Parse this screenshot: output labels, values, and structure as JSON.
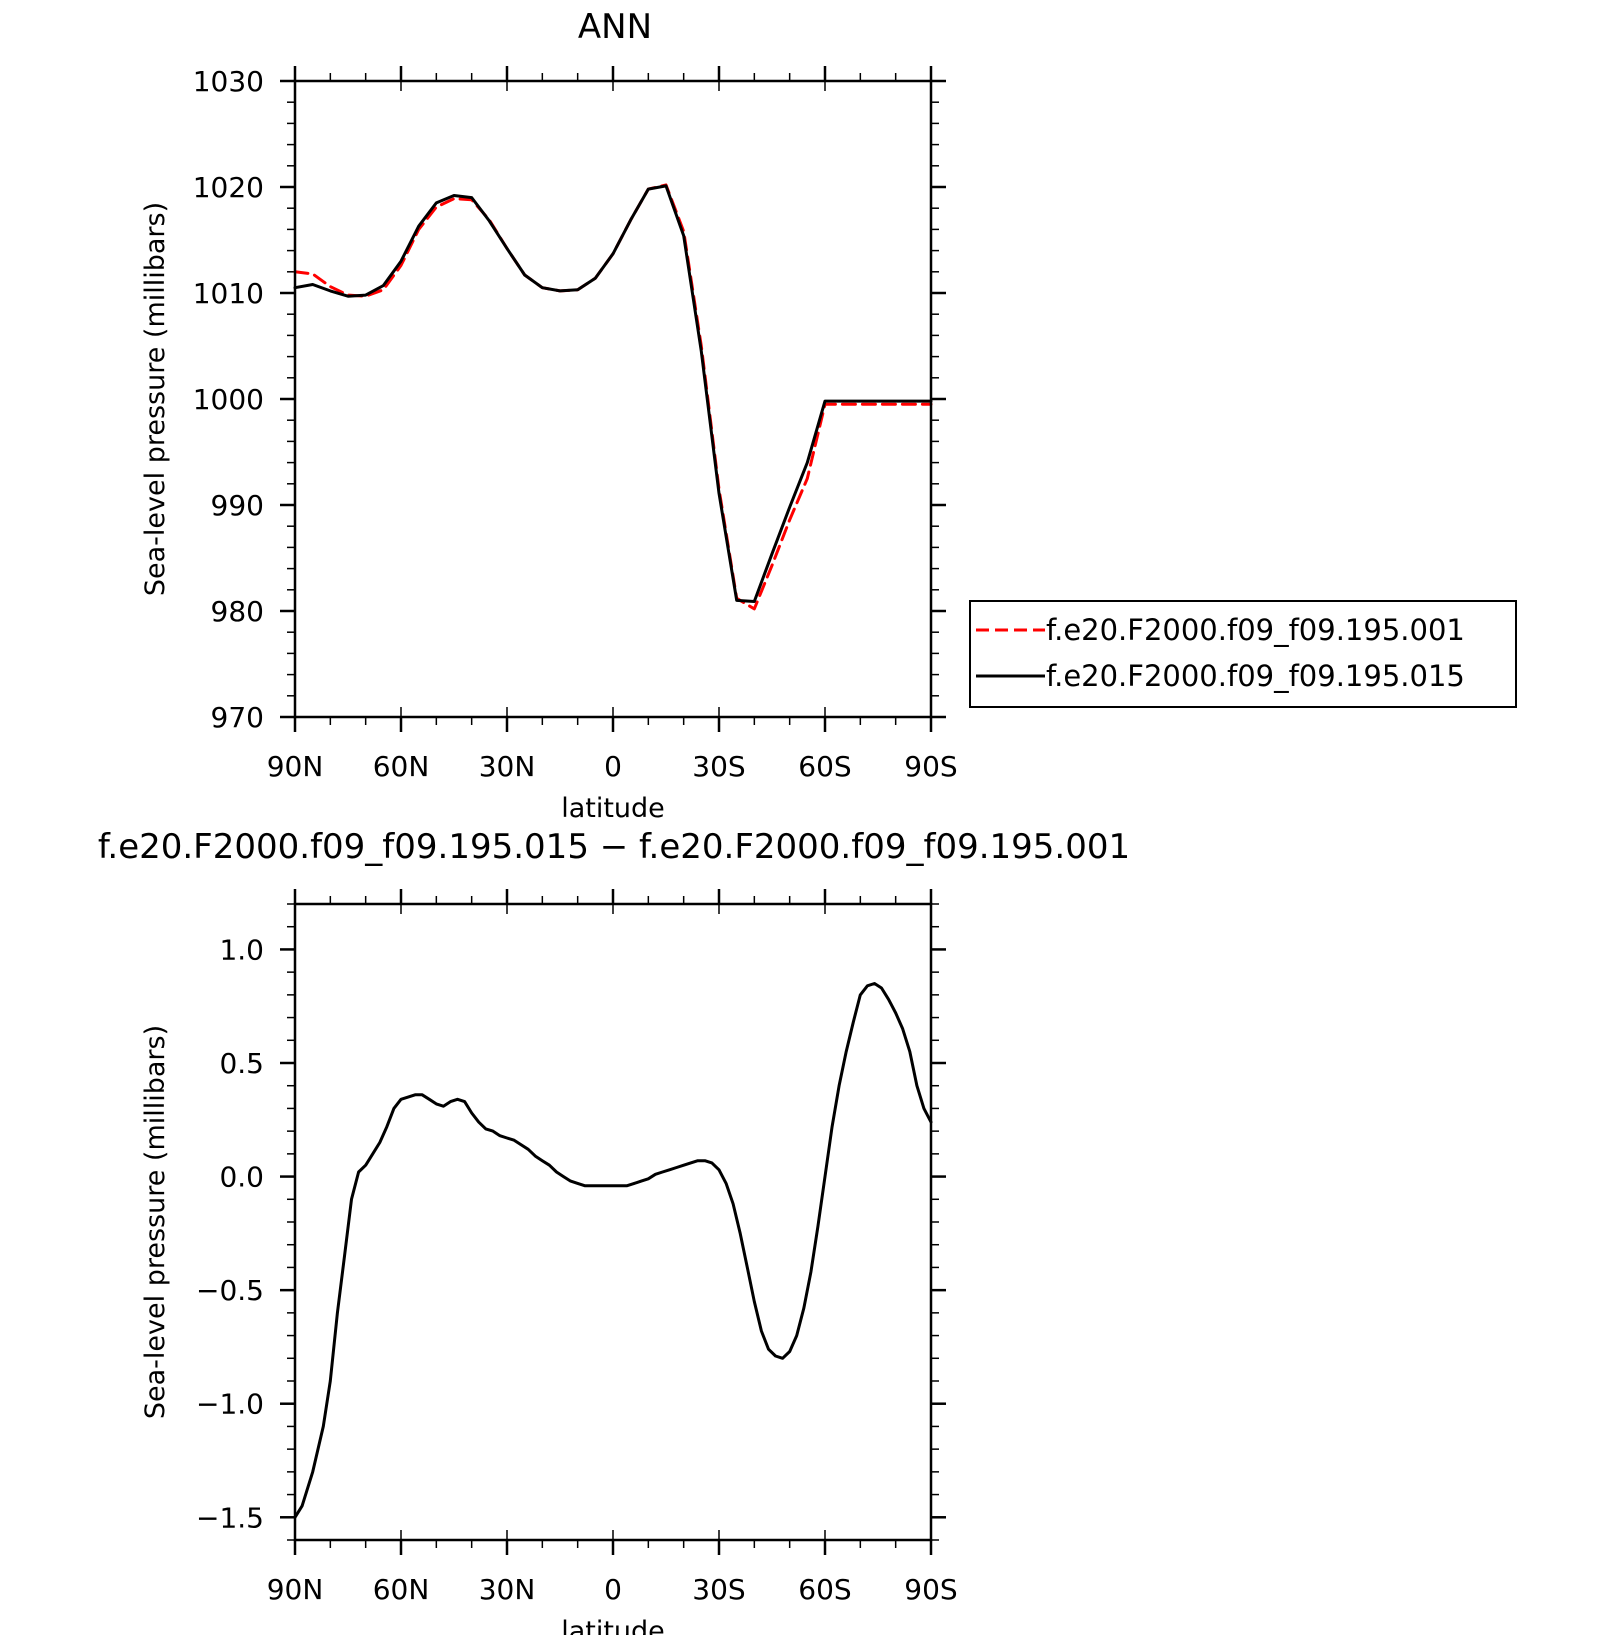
{
  "chart_data": [
    {
      "type": "line",
      "title": "ANN",
      "xlabel": "latitude",
      "ylabel": "Sea-level pressure (millibars)",
      "xlim": [
        90,
        -90
      ],
      "ylim": [
        970,
        1030
      ],
      "x_tick_values": [
        90,
        60,
        30,
        0,
        -30,
        -60,
        -90
      ],
      "x_tick_labels": [
        "90N",
        "60N",
        "30N",
        "0",
        "30S",
        "60S",
        "90S"
      ],
      "y_tick_values": [
        970,
        980,
        990,
        1000,
        1010,
        1020,
        1030
      ],
      "y_tick_labels": [
        "970",
        "980",
        "990",
        "1000",
        "1010",
        "1020",
        "1030"
      ],
      "grid": false,
      "legend_position": "right",
      "series": [
        {
          "name": "f.e20.F2000.f09_f09.195.001",
          "color": "#ff0000",
          "dash": "dashed",
          "x": [
            90,
            85,
            80,
            75,
            70,
            65,
            60,
            55,
            50,
            45,
            40,
            35,
            30,
            25,
            20,
            15,
            10,
            5,
            0,
            -5,
            -10,
            -15,
            -20,
            -25,
            -30,
            -35,
            -40,
            -45,
            -50,
            -55,
            -60,
            -65,
            -70,
            -75,
            -80,
            -85,
            -90
          ],
          "y": [
            1012.0,
            1011.8,
            1010.6,
            1009.8,
            1009.7,
            1010.3,
            1012.6,
            1016.0,
            1018.1,
            1018.9,
            1018.8,
            1016.9,
            1014.2,
            1011.7,
            1010.5,
            1010.2,
            1010.3,
            1011.4,
            1013.7,
            1016.9,
            1019.8,
            1020.2,
            1015.8,
            1005.0,
            991.5,
            981.2,
            980.2,
            984.3,
            988.6,
            992.5,
            999.5,
            999.5,
            999.5,
            999.5,
            999.5,
            999.5,
            999.5
          ]
        },
        {
          "name": "f.e20.F2000.f09_f09.195.015",
          "color": "#000000",
          "dash": "solid",
          "x": [
            90,
            85,
            80,
            75,
            70,
            65,
            60,
            55,
            50,
            45,
            40,
            35,
            30,
            25,
            20,
            15,
            10,
            5,
            0,
            -5,
            -10,
            -15,
            -20,
            -25,
            -30,
            -35,
            -40,
            -45,
            -50,
            -55,
            -60,
            -65,
            -70,
            -75,
            -80,
            -85,
            -90
          ],
          "y": [
            1010.5,
            1010.8,
            1010.2,
            1009.7,
            1009.8,
            1010.7,
            1013.0,
            1016.3,
            1018.5,
            1019.2,
            1019.0,
            1016.8,
            1014.2,
            1011.7,
            1010.5,
            1010.2,
            1010.3,
            1011.4,
            1013.7,
            1016.9,
            1019.8,
            1020.1,
            1015.4,
            1004.5,
            991.1,
            981.0,
            980.9,
            985.4,
            989.8,
            994.0,
            999.8,
            999.8,
            999.8,
            999.8,
            999.8,
            999.8,
            999.8
          ]
        }
      ]
    },
    {
      "type": "line",
      "title": "f.e20.F2000.f09_f09.195.015 − f.e20.F2000.f09_f09.195.001",
      "xlabel": "latitude",
      "ylabel": "Sea-level pressure (millibars)",
      "xlim": [
        90,
        -90
      ],
      "ylim": [
        -1.6,
        1.2
      ],
      "x_tick_values": [
        90,
        60,
        30,
        0,
        -30,
        -60,
        -90
      ],
      "x_tick_labels": [
        "90N",
        "60N",
        "30N",
        "0",
        "30S",
        "60S",
        "90S"
      ],
      "y_tick_values": [
        -1.5,
        -1.0,
        -0.5,
        0.0,
        0.5,
        1.0
      ],
      "y_tick_labels": [
        "−1.5",
        "−1.0",
        "−0.5",
        "0.0",
        "0.5",
        "1.0"
      ],
      "grid": false,
      "series": [
        {
          "color": "#000000",
          "dash": "solid",
          "x": [
            90,
            88,
            85,
            82,
            80,
            78,
            76,
            74,
            72,
            70,
            68,
            66,
            64,
            62,
            60,
            58,
            56,
            54,
            52,
            50,
            48,
            46,
            44,
            42,
            40,
            38,
            36,
            34,
            32,
            30,
            28,
            26,
            24,
            22,
            20,
            18,
            16,
            14,
            12,
            10,
            8,
            6,
            4,
            2,
            0,
            -2,
            -4,
            -6,
            -8,
            -10,
            -12,
            -14,
            -16,
            -18,
            -20,
            -22,
            -24,
            -26,
            -28,
            -30,
            -32,
            -34,
            -36,
            -38,
            -40,
            -42,
            -44,
            -46,
            -48,
            -50,
            -52,
            -54,
            -56,
            -58,
            -60,
            -62,
            -64,
            -66,
            -68,
            -70,
            -72,
            -74,
            -76,
            -78,
            -80,
            -82,
            -84,
            -86,
            -88,
            -90
          ],
          "y": [
            -1.5,
            -1.45,
            -1.3,
            -1.1,
            -0.9,
            -0.6,
            -0.35,
            -0.1,
            0.02,
            0.05,
            0.1,
            0.15,
            0.22,
            0.3,
            0.34,
            0.35,
            0.36,
            0.36,
            0.34,
            0.32,
            0.31,
            0.33,
            0.34,
            0.33,
            0.28,
            0.24,
            0.21,
            0.2,
            0.18,
            0.17,
            0.16,
            0.14,
            0.12,
            0.09,
            0.07,
            0.05,
            0.02,
            0.0,
            -0.02,
            -0.03,
            -0.04,
            -0.04,
            -0.04,
            -0.04,
            -0.04,
            -0.04,
            -0.04,
            -0.03,
            -0.02,
            -0.01,
            0.01,
            0.02,
            0.03,
            0.04,
            0.05,
            0.06,
            0.07,
            0.07,
            0.06,
            0.03,
            -0.03,
            -0.12,
            -0.25,
            -0.4,
            -0.55,
            -0.68,
            -0.76,
            -0.79,
            -0.8,
            -0.77,
            -0.7,
            -0.58,
            -0.42,
            -0.22,
            0.0,
            0.22,
            0.4,
            0.55,
            0.68,
            0.8,
            0.84,
            0.85,
            0.83,
            0.78,
            0.72,
            0.65,
            0.55,
            0.4,
            0.3,
            0.24
          ]
        }
      ]
    }
  ]
}
